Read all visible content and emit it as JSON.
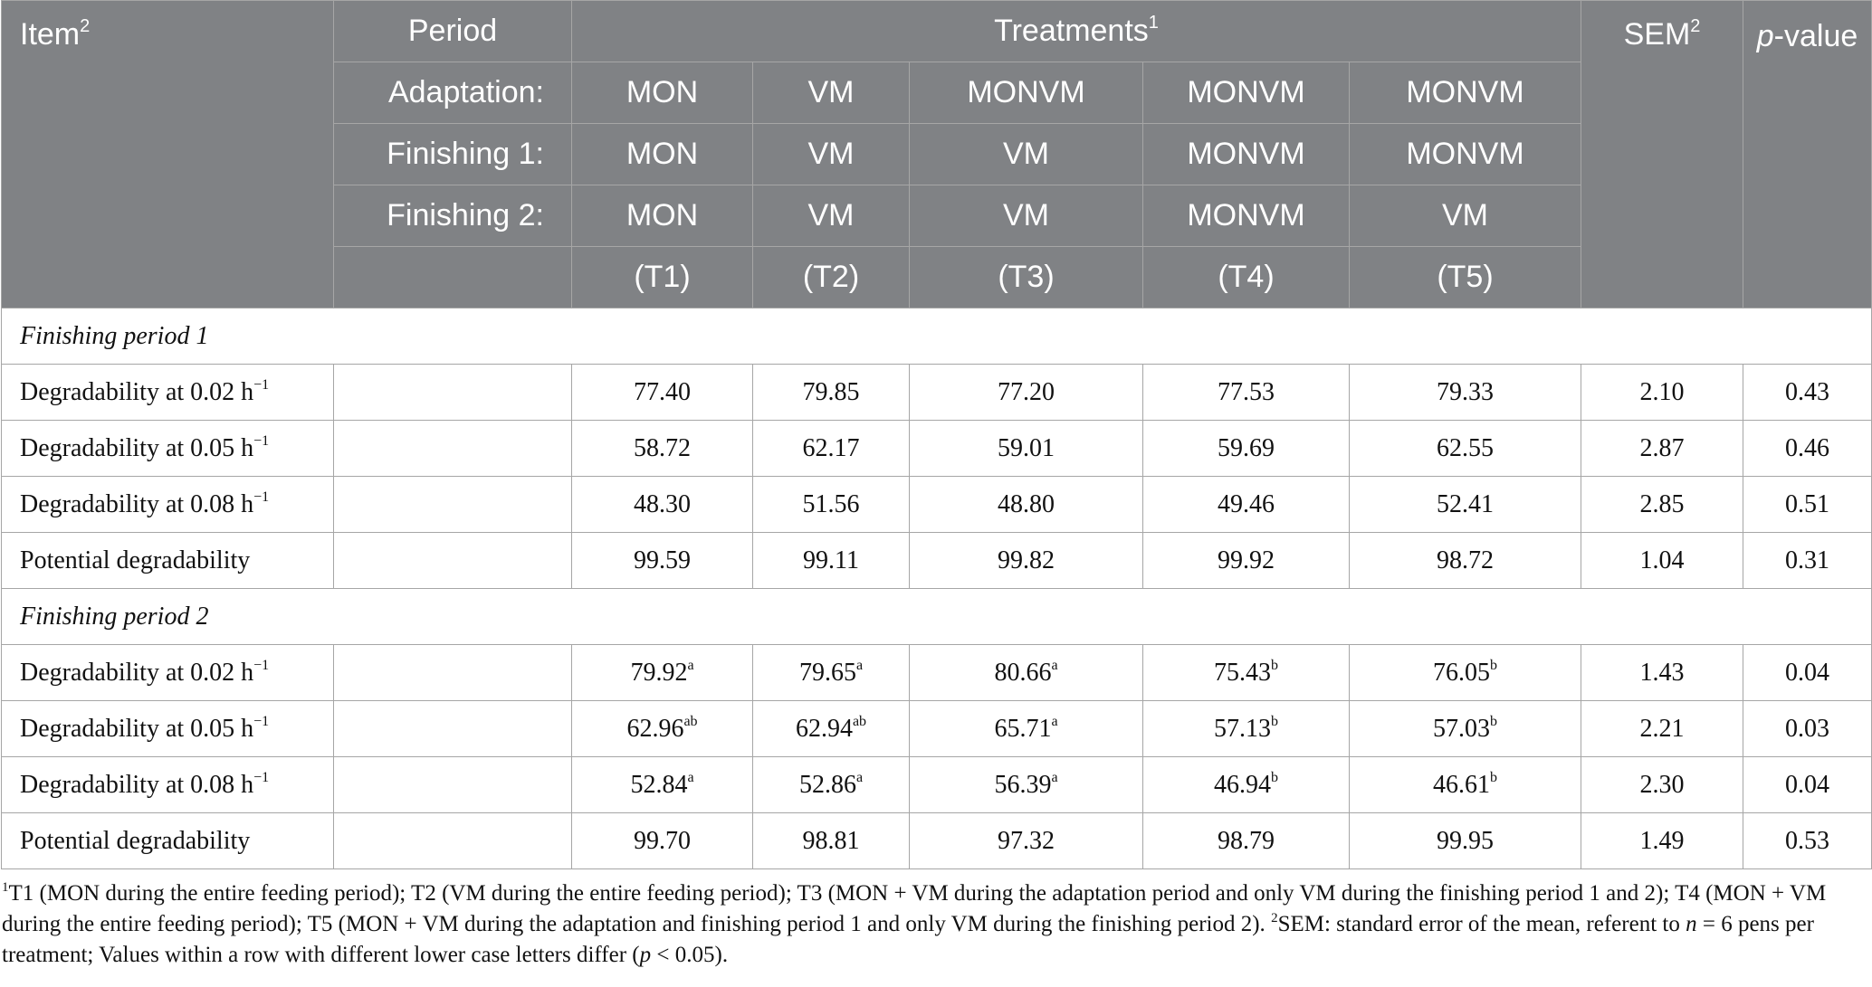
{
  "header": {
    "item": "Item",
    "item_sup": "2",
    "period": "Period",
    "treatments": "Treatments",
    "treatments_sup": "1",
    "sem": "SEM",
    "sem_sup": "2",
    "pvalue_italic": "p",
    "pvalue_rest": "-value",
    "adaptation_label": "Adaptation:",
    "finishing1_label": "Finishing 1:",
    "finishing2_label": "Finishing 2:",
    "adaptation": [
      "MON",
      "VM",
      "MONVM",
      "MONVM",
      "MONVM"
    ],
    "finishing1": [
      "MON",
      "VM",
      "VM",
      "MONVM",
      "MONVM"
    ],
    "finishing2": [
      "MON",
      "VM",
      "VM",
      "MONVM",
      "VM"
    ],
    "codes": [
      "(T1)",
      "(T2)",
      "(T3)",
      "(T4)",
      "(T5)"
    ]
  },
  "sections": [
    {
      "title": "Finishing period 1",
      "rows": [
        {
          "label": "Degradability at 0.02 h",
          "exp": "−1",
          "vals": [
            "77.40",
            "79.85",
            "77.20",
            "77.53",
            "79.33"
          ],
          "sups": [
            "",
            "",
            "",
            "",
            ""
          ],
          "sem": "2.10",
          "p": "0.43"
        },
        {
          "label": "Degradability at 0.05 h",
          "exp": "−1",
          "vals": [
            "58.72",
            "62.17",
            "59.01",
            "59.69",
            "62.55"
          ],
          "sups": [
            "",
            "",
            "",
            "",
            ""
          ],
          "sem": "2.87",
          "p": "0.46"
        },
        {
          "label": "Degradability at 0.08 h",
          "exp": "−1",
          "vals": [
            "48.30",
            "51.56",
            "48.80",
            "49.46",
            "52.41"
          ],
          "sups": [
            "",
            "",
            "",
            "",
            ""
          ],
          "sem": "2.85",
          "p": "0.51"
        },
        {
          "label": "Potential degradability",
          "exp": "",
          "vals": [
            "99.59",
            "99.11",
            "99.82",
            "99.92",
            "98.72"
          ],
          "sups": [
            "",
            "",
            "",
            "",
            ""
          ],
          "sem": "1.04",
          "p": "0.31"
        }
      ]
    },
    {
      "title": "Finishing period 2",
      "rows": [
        {
          "label": "Degradability at 0.02 h",
          "exp": "−1",
          "vals": [
            "79.92",
            "79.65",
            "80.66",
            "75.43",
            "76.05"
          ],
          "sups": [
            "a",
            "a",
            "a",
            "b",
            "b"
          ],
          "sem": "1.43",
          "p": "0.04"
        },
        {
          "label": "Degradability at 0.05 h",
          "exp": "−1",
          "vals": [
            "62.96",
            "62.94",
            "65.71",
            "57.13",
            "57.03"
          ],
          "sups": [
            "ab",
            "ab",
            "a",
            "b",
            "b"
          ],
          "sem": "2.21",
          "p": "0.03"
        },
        {
          "label": "Degradability at 0.08 h",
          "exp": "−1",
          "vals": [
            "52.84",
            "52.86",
            "56.39",
            "46.94",
            "46.61"
          ],
          "sups": [
            "a",
            "a",
            "a",
            "b",
            "b"
          ],
          "sem": "2.30",
          "p": "0.04"
        },
        {
          "label": "Potential degradability",
          "exp": "",
          "vals": [
            "99.70",
            "98.81",
            "97.32",
            "98.79",
            "99.95"
          ],
          "sups": [
            "",
            "",
            "",
            "",
            ""
          ],
          "sem": "1.49",
          "p": "0.53"
        }
      ]
    }
  ],
  "footnote": {
    "sup1": "1",
    "part1": "T1 (MON during the entire feeding period); T2 (VM during the entire feeding period); T3 (MON + VM during the adaptation period and only VM during the finishing period 1 and 2); T4 (MON + VM during the entire feeding period); T5 (MON + VM during the adaptation and finishing period 1 and only VM during the finishing period 2). ",
    "sup2": "2",
    "part2": "SEM: standard error of the mean, referent to ",
    "n_italic": "n",
    "part3": " = 6 pens per treatment; Values within a row with different lower case letters differ (",
    "p_italic": "p",
    "part4": " < 0.05)."
  }
}
